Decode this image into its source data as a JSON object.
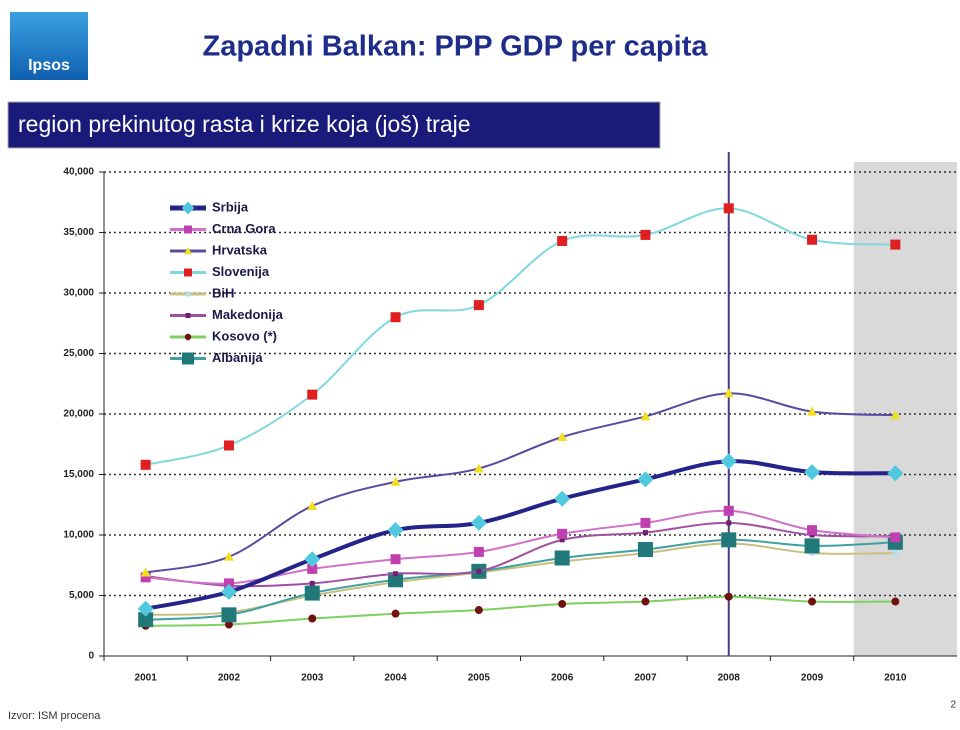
{
  "chart_data": {
    "type": "line",
    "logo": "Ipsos",
    "title": "Zapadni Balkan: PPP GDP per capita",
    "subtitle": "region prekinutog rasta i krize koja (još) traje",
    "source": "Izvor: ISM procena",
    "page_number": "2",
    "categories": [
      "2001",
      "2002",
      "2003",
      "2004",
      "2005",
      "2006",
      "2007",
      "2008",
      "2009",
      "2010"
    ],
    "series": [
      {
        "name": "Srbija",
        "color": "#23238a",
        "marker_color": "#4fc8e0",
        "marker": "diamond",
        "width": 4,
        "values": [
          3900,
          5300,
          8000,
          10400,
          11000,
          13000,
          14600,
          16100,
          15200,
          15100
        ]
      },
      {
        "name": "Crna Gora",
        "color": "#d070c8",
        "marker_color": "#c040b0",
        "marker": "square",
        "width": 2,
        "values": [
          6500,
          6000,
          7200,
          8000,
          8600,
          10100,
          11000,
          12000,
          10400,
          9800
        ]
      },
      {
        "name": "Hrvatska",
        "color": "#5a4aa0",
        "marker_color": "#f0e020",
        "marker": "triangle",
        "width": 2,
        "values": [
          6900,
          8200,
          12400,
          14400,
          15500,
          18100,
          19800,
          21700,
          20200,
          19900
        ]
      },
      {
        "name": "Slovenija",
        "color": "#80d8e0",
        "marker_color": "#e02020",
        "marker": "square",
        "width": 2,
        "values": [
          15800,
          17400,
          21600,
          28000,
          29000,
          34300,
          34800,
          37000,
          34400,
          34000
        ]
      },
      {
        "name": "BiH",
        "color": "#c8c080",
        "marker_color": "#b0e0f0",
        "marker": "small",
        "width": 2,
        "values": [
          3400,
          3600,
          5000,
          6100,
          6900,
          7800,
          8500,
          9300,
          8500,
          8500
        ]
      },
      {
        "name": "Makedonija",
        "color": "#a050a0",
        "marker_color": "#702070",
        "marker": "small",
        "width": 2,
        "values": [
          6600,
          5800,
          6000,
          6800,
          7000,
          9600,
          10200,
          11000,
          10000,
          9900
        ]
      },
      {
        "name": "Kosovo (*)",
        "color": "#80d060",
        "marker_color": "#701010",
        "marker": "circle",
        "width": 2,
        "values": [
          2500,
          2600,
          3100,
          3500,
          3800,
          4300,
          4500,
          4900,
          4500,
          4500
        ]
      },
      {
        "name": "Albanija",
        "color": "#40a0a0",
        "marker_color": "#207878",
        "marker": "bigsquare",
        "width": 2,
        "values": [
          3000,
          3400,
          5200,
          6300,
          7000,
          8100,
          8800,
          9600,
          9100,
          9400
        ]
      }
    ],
    "ylim": [
      0,
      40000
    ],
    "yticks": [
      0,
      {
        "value": 5000,
        "label": "5,000"
      },
      {
        "value": 10000,
        "label": "10,000"
      },
      {
        "value": 15000,
        "label": "15,000"
      },
      {
        "value": 20000,
        "label": "20,000"
      },
      {
        "value": 25000,
        "label": "25,000"
      },
      {
        "value": 30000,
        "label": "30,000"
      },
      {
        "value": 35000,
        "label": "35,000"
      },
      {
        "value": 40000,
        "label": "40,000"
      }
    ],
    "grid": true,
    "vline_at": "2008",
    "shaded": "2010",
    "legend": "upper-left"
  }
}
